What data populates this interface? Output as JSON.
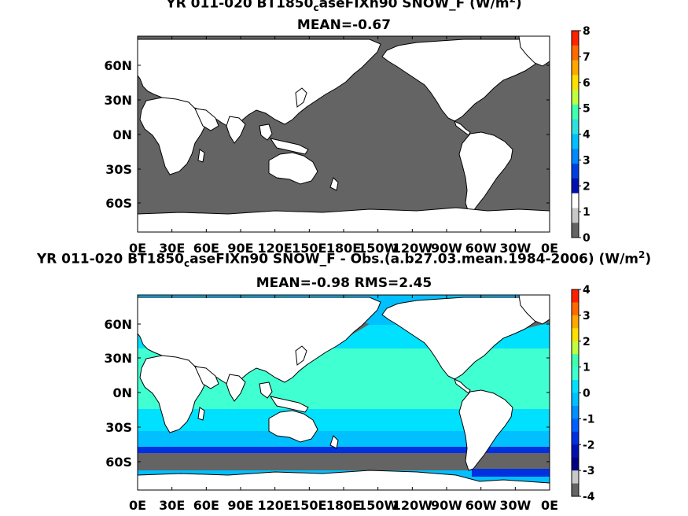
{
  "chart_data": [
    {
      "type": "heatmap",
      "title_prefix": "YR 011-020 BT1850",
      "title_sub": "c",
      "title_mid": "aseFIXn90  SNOW_F (W/m",
      "title_sup": "2",
      "title_end": ")",
      "subtitle": "MEAN=-0.67",
      "xlabels": [
        "0E",
        "30E",
        "60E",
        "90E",
        "120E",
        "150E",
        "180E",
        "150W",
        "120W",
        "90W",
        "60W",
        "30W",
        "0E"
      ],
      "ylabels": [
        "60N",
        "30N",
        "0N",
        "30S",
        "60S"
      ],
      "colorbar": {
        "labels": [
          "8",
          "7",
          "6",
          "5",
          "4",
          "3",
          "2",
          "1",
          "0"
        ],
        "range": [
          0,
          8
        ],
        "colors": [
          "#ff2200",
          "#ff6a00",
          "#ffa800",
          "#ffe000",
          "#c0ff40",
          "#40ffb0",
          "#30e0e0",
          "#00c0ff",
          "#0088ff",
          "#0040e0",
          "#0010b0",
          "#ffffff",
          "#c8c8c8",
          "#646464"
        ]
      },
      "land_color": "#ffffff",
      "ocean_color": "#646464"
    },
    {
      "type": "heatmap",
      "title_prefix": "YR 011-020 BT1850",
      "title_sub": "c",
      "title_mid": "aseFIXn90 SNOW_F - Obs.(a.b27.03.mean.1984-2006) (W/m",
      "title_sup": "2",
      "title_end": ")",
      "subtitle": "MEAN=-0.98 RMS=2.45",
      "xlabels": [
        "0E",
        "30E",
        "60E",
        "90E",
        "120E",
        "150E",
        "180E",
        "150W",
        "120W",
        "90W",
        "60W",
        "30W",
        "0E"
      ],
      "ylabels": [
        "60N",
        "30N",
        "0N",
        "30S",
        "60S"
      ],
      "colorbar": {
        "labels": [
          "4",
          "3",
          "2",
          "1",
          "0",
          "-1",
          "-2",
          "-3",
          "-4"
        ],
        "range": [
          -4,
          4
        ],
        "colors": [
          "#ff2200",
          "#ff6a00",
          "#ffa800",
          "#ffe000",
          "#c0ff40",
          "#40ffb0",
          "#40ffd0",
          "#00e0ff",
          "#00c0ff",
          "#0090ff",
          "#0060ff",
          "#0030e0",
          "#0010b0",
          "#000080",
          "#c8c8c8",
          "#646464"
        ]
      },
      "land_color": "#ffffff",
      "field_colors": [
        "#40ffd0",
        "#00e0ff",
        "#00c0ff",
        "#0090ff",
        "#0030e0",
        "#646464"
      ]
    }
  ]
}
